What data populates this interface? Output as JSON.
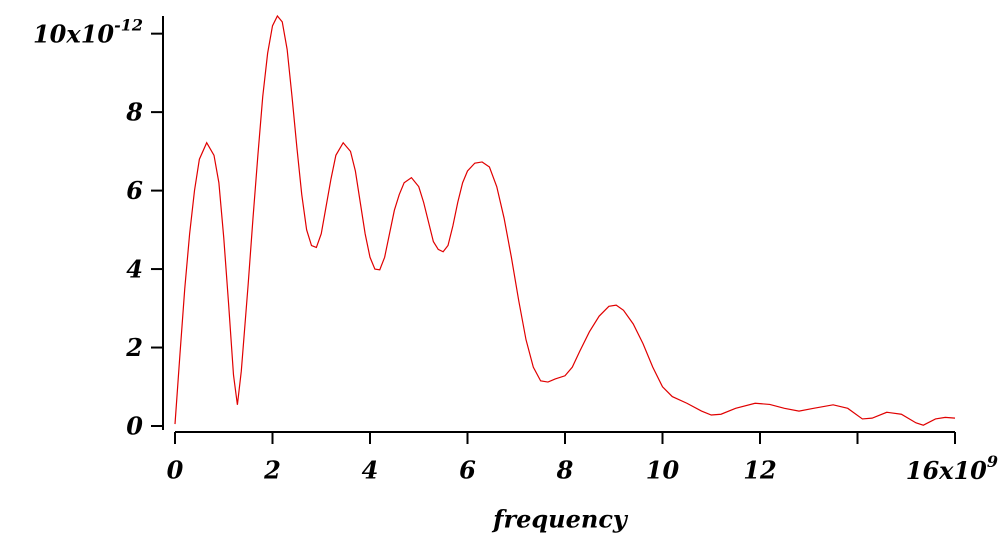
{
  "chart_data": {
    "type": "line",
    "x_label": "frequency",
    "x": [
      0,
      0.1,
      0.2,
      0.3,
      0.4,
      0.5,
      0.65,
      0.8,
      0.9,
      1.0,
      1.1,
      1.2,
      1.28,
      1.36,
      1.5,
      1.6,
      1.7,
      1.8,
      1.9,
      2.0,
      2.1,
      2.2,
      2.3,
      2.4,
      2.5,
      2.6,
      2.7,
      2.8,
      2.9,
      3.0,
      3.1,
      3.2,
      3.3,
      3.45,
      3.6,
      3.7,
      3.8,
      3.9,
      4.0,
      4.1,
      4.2,
      4.3,
      4.4,
      4.5,
      4.6,
      4.7,
      4.85,
      5.0,
      5.1,
      5.2,
      5.3,
      5.4,
      5.5,
      5.6,
      5.7,
      5.8,
      5.9,
      6.0,
      6.15,
      6.3,
      6.45,
      6.6,
      6.75,
      6.9,
      7.05,
      7.2,
      7.35,
      7.5,
      7.65,
      7.8,
      8.0,
      8.15,
      8.3,
      8.5,
      8.7,
      8.9,
      9.05,
      9.2,
      9.4,
      9.6,
      9.8,
      10.0,
      10.2,
      10.5,
      10.8,
      11.0,
      11.2,
      11.5,
      11.9,
      12.2,
      12.5,
      12.8,
      13.1,
      13.5,
      13.8,
      14.1,
      14.3,
      14.6,
      14.9,
      15.2,
      15.35,
      15.6,
      15.8,
      16.0
    ],
    "series": [
      {
        "color": "#e00000",
        "values": [
          0.05,
          1.8,
          3.5,
          4.9,
          6.0,
          6.8,
          7.22,
          6.9,
          6.2,
          4.8,
          3.1,
          1.3,
          0.54,
          1.4,
          3.6,
          5.3,
          6.9,
          8.4,
          9.5,
          10.2,
          10.45,
          10.3,
          9.6,
          8.4,
          7.1,
          5.9,
          5.0,
          4.6,
          4.55,
          4.9,
          5.6,
          6.3,
          6.9,
          7.22,
          7.0,
          6.5,
          5.7,
          4.9,
          4.3,
          4.0,
          3.98,
          4.3,
          4.9,
          5.5,
          5.9,
          6.2,
          6.33,
          6.1,
          5.7,
          5.2,
          4.7,
          4.5,
          4.44,
          4.6,
          5.1,
          5.7,
          6.2,
          6.5,
          6.7,
          6.73,
          6.6,
          6.1,
          5.3,
          4.3,
          3.2,
          2.2,
          1.5,
          1.15,
          1.12,
          1.2,
          1.28,
          1.5,
          1.9,
          2.4,
          2.8,
          3.05,
          3.08,
          2.95,
          2.6,
          2.1,
          1.5,
          1.0,
          0.75,
          0.58,
          0.38,
          0.28,
          0.3,
          0.45,
          0.58,
          0.55,
          0.45,
          0.38,
          0.45,
          0.54,
          0.45,
          0.18,
          0.2,
          0.35,
          0.3,
          0.08,
          0.02,
          0.18,
          0.22,
          0.2
        ]
      }
    ],
    "xlim": [
      0,
      16
    ],
    "ylim": [
      0,
      10.45
    ],
    "xticks": [
      0,
      2,
      4,
      6,
      8,
      10,
      12,
      {
        "value": 14,
        "label": null
      },
      {
        "value": 16,
        "label": "16x10",
        "exponent": "9"
      }
    ],
    "yticks": [
      0,
      2,
      4,
      6,
      8,
      {
        "value": 10,
        "label": "10x10",
        "exponent": "-12"
      }
    ]
  }
}
